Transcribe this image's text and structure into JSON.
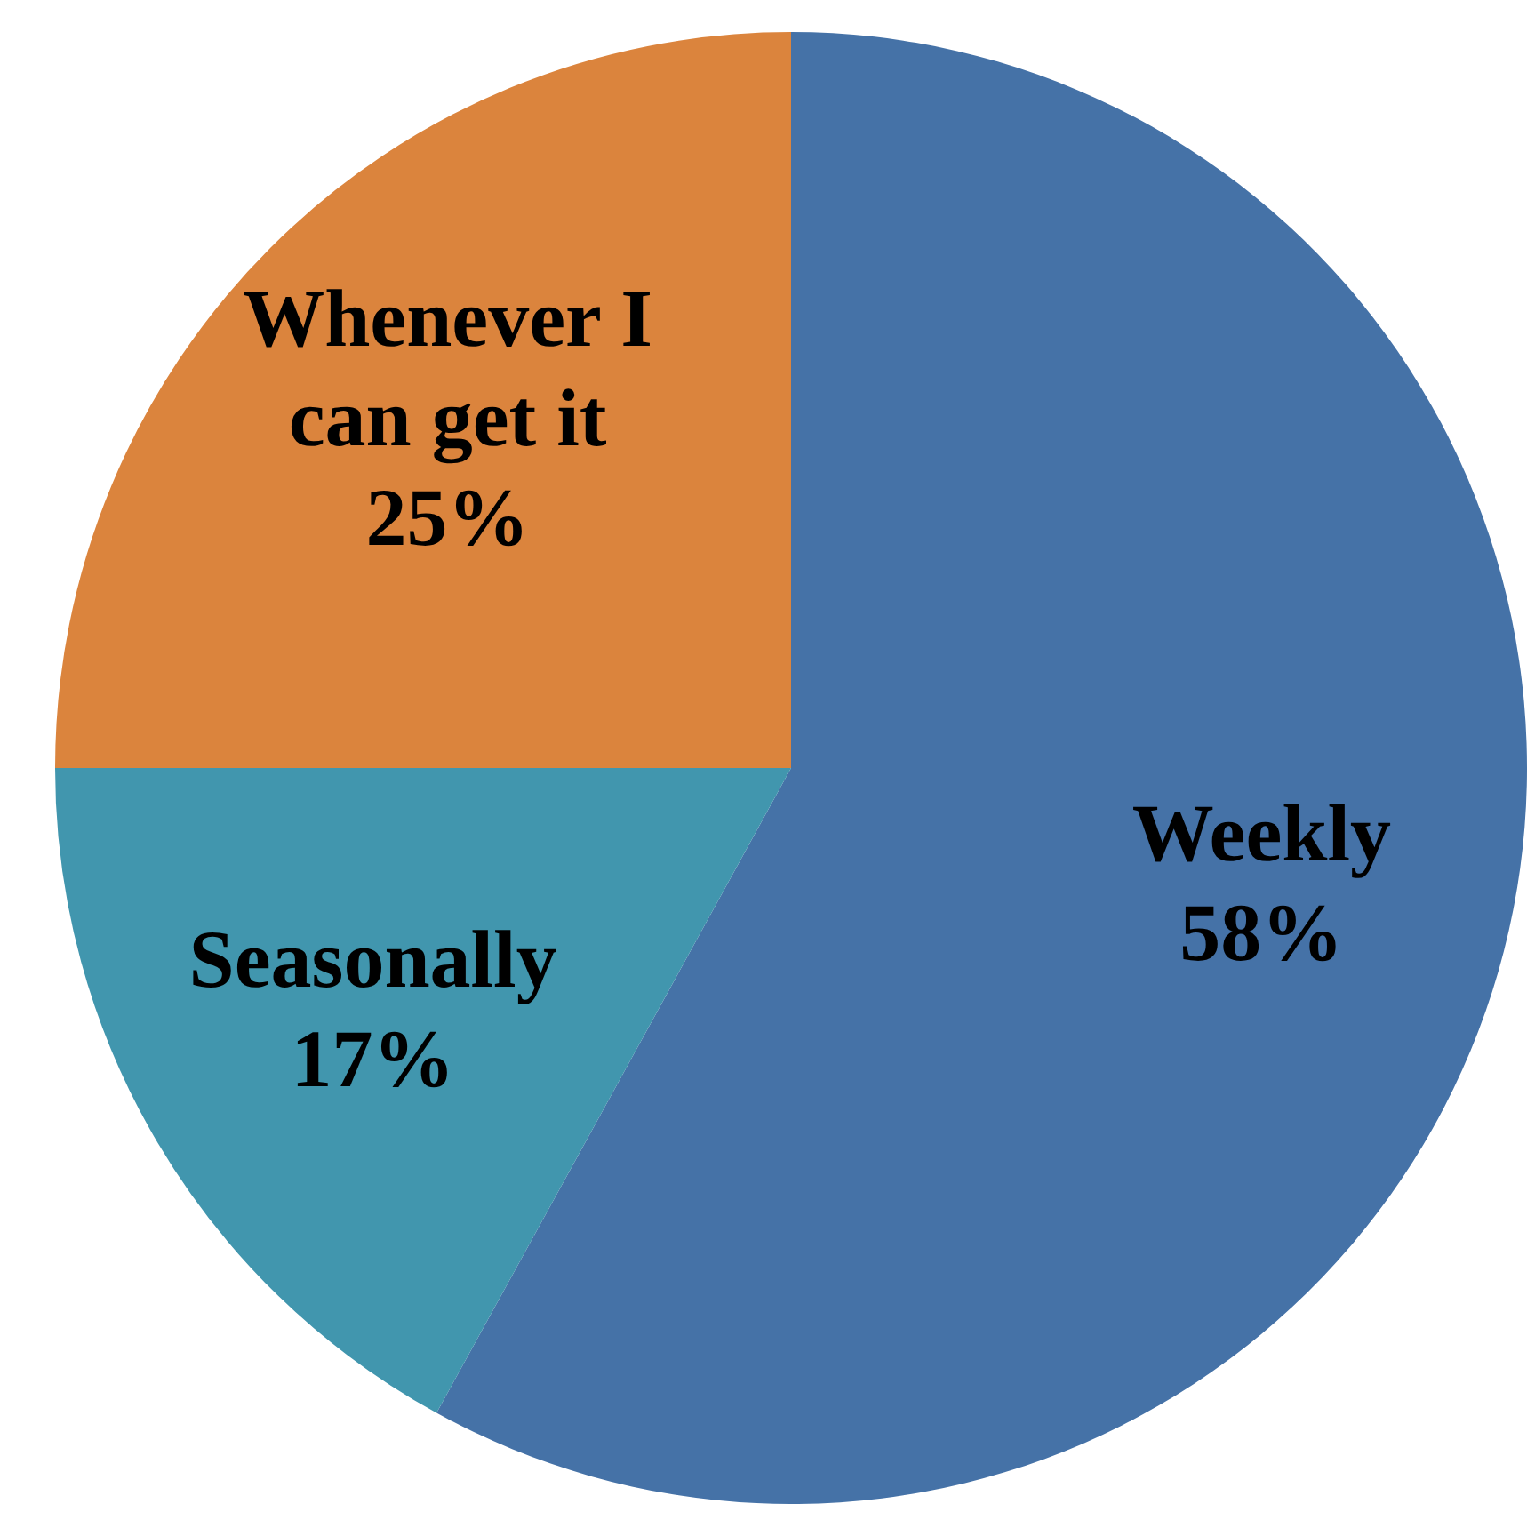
{
  "chart_data": {
    "type": "pie",
    "categories": [
      "Weekly",
      "Seasonally",
      "Whenever I can get it"
    ],
    "values": [
      58,
      17,
      25
    ],
    "colors": [
      "#4572a7",
      "#4196ae",
      "#db843d"
    ],
    "value_labels": [
      "58%",
      "17%",
      "25%"
    ],
    "legend": false
  }
}
